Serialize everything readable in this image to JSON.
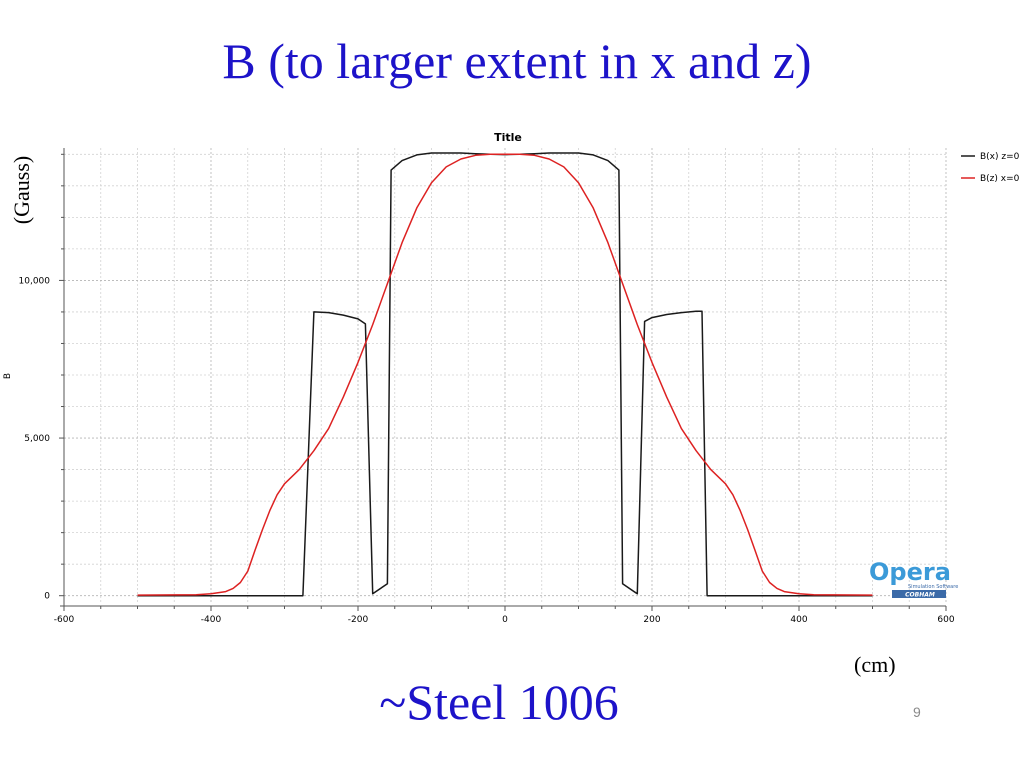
{
  "slide": {
    "title": "B (to larger extent in x and z)",
    "y_unit": "(Gauss)",
    "x_unit": "(cm)",
    "subtitle": "~Steel 1006",
    "page_number": "9"
  },
  "logo": {
    "name": "Opera",
    "tagline": "Simulation Software",
    "maker": "COBHAM",
    "color": "#3b9ad8"
  },
  "chart_data": {
    "type": "line",
    "title": "Title",
    "xlabel": "",
    "ylabel": "B",
    "xlim": [
      -600,
      600
    ],
    "ylim": [
      -200,
      14200
    ],
    "x_ticks": [
      -600,
      -400,
      -200,
      0,
      200,
      400,
      600
    ],
    "y_ticks": [
      0,
      5000,
      10000
    ],
    "y_tick_labels": [
      "0",
      "5,000",
      "10,000"
    ],
    "grid": true,
    "legend_position": "top-right",
    "series": [
      {
        "name": "B(x) z=0",
        "color": "#1a1a1a",
        "x": [
          -500,
          -400,
          -275,
          -260,
          -240,
          -220,
          -200,
          -190,
          -180,
          -160,
          -155,
          -140,
          -120,
          -100,
          -80,
          -60,
          -40,
          -20,
          0,
          20,
          40,
          60,
          80,
          100,
          120,
          140,
          155,
          160,
          180,
          190,
          200,
          220,
          240,
          260,
          268,
          275,
          400,
          500
        ],
        "y": [
          0,
          0,
          0,
          9000,
          8980,
          8900,
          8780,
          8620,
          60,
          380,
          13500,
          13800,
          13980,
          14040,
          14040,
          14040,
          14020,
          14000,
          13990,
          14000,
          14020,
          14040,
          14040,
          14040,
          13980,
          13800,
          13500,
          380,
          60,
          8700,
          8820,
          8920,
          8980,
          9020,
          9020,
          0,
          0,
          0
        ]
      },
      {
        "name": "B(z) x=0",
        "color": "#dd2222",
        "x": [
          -500,
          -420,
          -400,
          -380,
          -370,
          -360,
          -350,
          -340,
          -330,
          -320,
          -310,
          -300,
          -280,
          -260,
          -240,
          -220,
          -200,
          -180,
          -160,
          -140,
          -120,
          -100,
          -80,
          -60,
          -40,
          -20,
          0,
          20,
          40,
          60,
          80,
          100,
          120,
          140,
          160,
          180,
          200,
          220,
          240,
          260,
          280,
          300,
          310,
          320,
          330,
          340,
          350,
          360,
          370,
          380,
          400,
          420,
          500
        ],
        "y": [
          20,
          30,
          60,
          130,
          230,
          420,
          780,
          1450,
          2100,
          2700,
          3200,
          3550,
          4000,
          4600,
          5300,
          6300,
          7400,
          8600,
          9900,
          11200,
          12300,
          13100,
          13600,
          13850,
          13970,
          14000,
          14000,
          14000,
          13970,
          13850,
          13600,
          13100,
          12300,
          11200,
          9900,
          8600,
          7400,
          6300,
          5300,
          4600,
          4000,
          3550,
          3200,
          2700,
          2100,
          1450,
          780,
          420,
          230,
          130,
          60,
          30,
          20
        ]
      }
    ]
  }
}
